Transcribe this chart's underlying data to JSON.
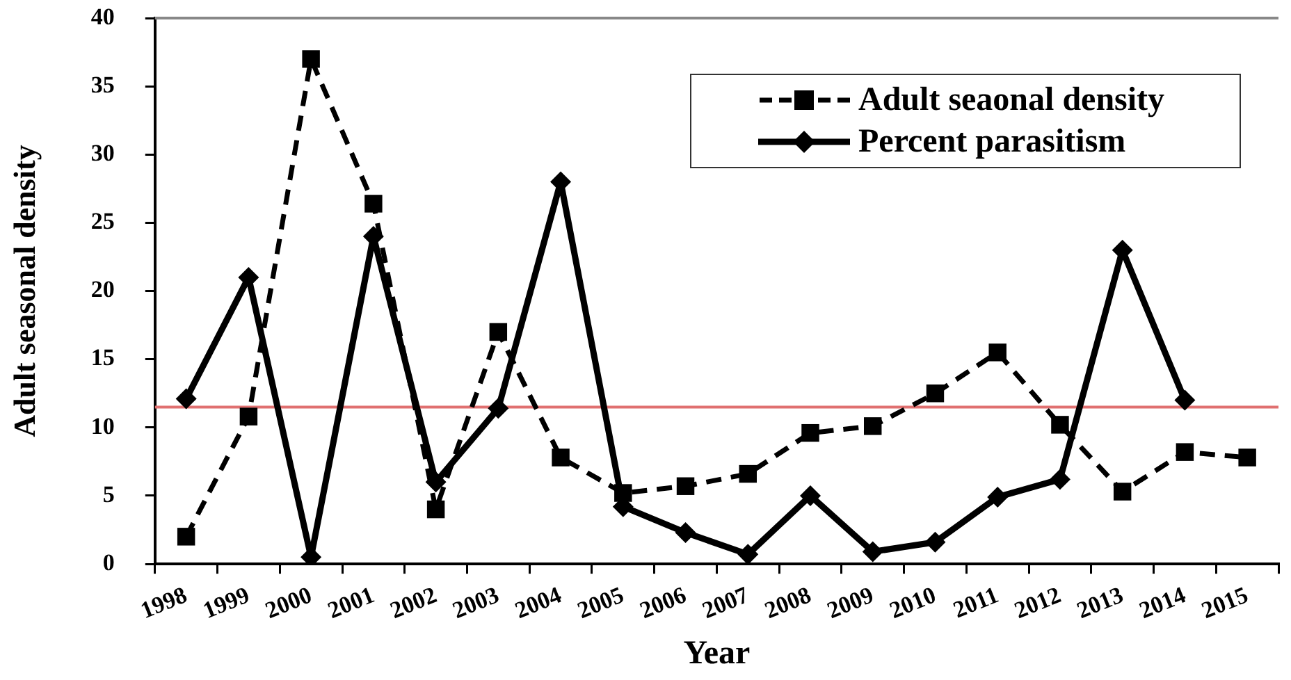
{
  "chart_data": {
    "type": "line",
    "xlabel": "Year",
    "ylabel": "Adult seasonal density",
    "categories": [
      "1998",
      "1999",
      "2000",
      "2001",
      "2002",
      "2003",
      "2004",
      "2005",
      "2006",
      "2007",
      "2008",
      "2009",
      "2010",
      "2011",
      "2012",
      "2013",
      "2014",
      "2015"
    ],
    "series": [
      {
        "name": "Adult seaonal density",
        "color": "#000000",
        "marker": "square",
        "line_style": "dashed",
        "values": [
          2,
          10.8,
          37,
          26.4,
          4,
          17,
          7.8,
          5.2,
          5.7,
          6.6,
          9.6,
          10.1,
          12.5,
          15.5,
          10.2,
          5.3,
          8.2,
          7.8
        ]
      },
      {
        "name": "Percent parasitism",
        "color": "#000000",
        "marker": "diamond",
        "line_style": "solid",
        "values": [
          12.1,
          21,
          0.5,
          24,
          6,
          11.4,
          28,
          4.2,
          2.3,
          0.7,
          5,
          0.9,
          1.6,
          4.9,
          6.2,
          23,
          12,
          null
        ]
      }
    ],
    "ylim": [
      0,
      40
    ],
    "yticks": [
      0,
      5,
      10,
      15,
      20,
      25,
      30,
      35,
      40
    ],
    "legend": "top right",
    "ref_lines": [
      {
        "axis": "y",
        "value": 11.5,
        "color": "#e07070"
      }
    ]
  }
}
